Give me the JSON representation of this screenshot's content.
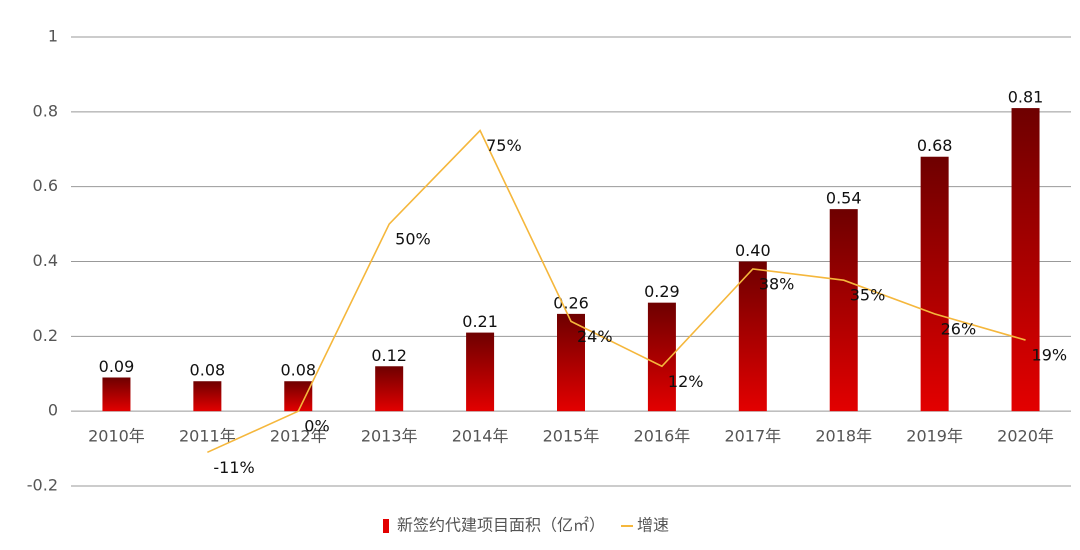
{
  "chart_data": {
    "type": "bar",
    "categories": [
      "2010年",
      "2011年",
      "2012年",
      "2013年",
      "2014年",
      "2015年",
      "2016年",
      "2017年",
      "2018年",
      "2019年",
      "2020年"
    ],
    "series": [
      {
        "name": "新签约代建项目面积（亿㎡）",
        "type": "bar",
        "color": "#e30000",
        "values": [
          0.09,
          0.08,
          0.08,
          0.12,
          0.21,
          0.26,
          0.29,
          0.4,
          0.54,
          0.68,
          0.81
        ],
        "value_labels": [
          "0.09",
          "0.08",
          "0.08",
          "0.12",
          "0.21",
          "0.26",
          "0.29",
          "0.40",
          "0.54",
          "0.68",
          "0.81"
        ]
      },
      {
        "name": "增速",
        "type": "line",
        "color": "#f5b73c",
        "values": [
          null,
          -0.11,
          0,
          0.5,
          0.75,
          0.24,
          0.12,
          0.38,
          0.35,
          0.26,
          0.19
        ],
        "value_labels": [
          null,
          "-11%",
          "0%",
          "50%",
          "75%",
          "24%",
          "12%",
          "38%",
          "35%",
          "26%",
          "19%"
        ]
      }
    ],
    "ylim": [
      -0.2,
      1
    ],
    "yticks": [
      -0.2,
      0,
      0.2,
      0.4,
      0.6,
      0.8,
      1
    ],
    "grid": true,
    "legend": "bottom"
  }
}
